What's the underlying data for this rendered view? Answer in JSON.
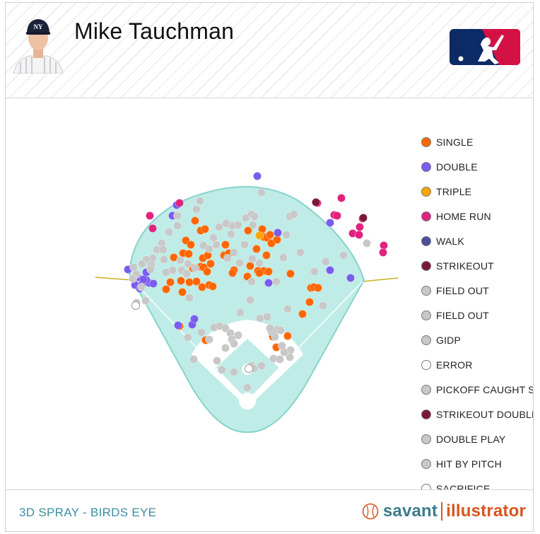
{
  "header": {
    "player_name": "Mike Tauchman",
    "logo_icon": "mlb-logo-icon",
    "headshot_icon": "player-headshot"
  },
  "footer": {
    "title": "3D SPRAY - BIRDS EYE",
    "brand_primary": "savant",
    "brand_secondary": "illustrator",
    "brand_icon": "baseball-icon"
  },
  "legend": [
    {
      "label": "SINGLE",
      "color": "#ff6600"
    },
    {
      "label": "DOUBLE",
      "color": "#7a5cf0"
    },
    {
      "label": "TRIPLE",
      "color": "#ffa500"
    },
    {
      "label": "HOME RUN",
      "color": "#e0237f"
    },
    {
      "label": "WALK",
      "color": "#4b4f9a"
    },
    {
      "label": "STRIKEOUT",
      "color": "#7a1838"
    },
    {
      "label": "FIELD OUT",
      "color": "#c8c8c8"
    },
    {
      "label": "FIELD OUT",
      "color": "#c8c8c8"
    },
    {
      "label": "GIDP",
      "color": "#c8c8c8"
    },
    {
      "label": "ERROR",
      "color": "#ffffff"
    },
    {
      "label": "PICKOFF CAUGHT STEALING",
      "color": "#c8c8c8"
    },
    {
      "label": "STRIKEOUT DOUBLE PLAY",
      "color": "#7a1838"
    },
    {
      "label": "DOUBLE PLAY",
      "color": "#c8c8c8"
    },
    {
      "label": "HIT BY PITCH",
      "color": "#c8c8c8"
    },
    {
      "label": "SACRIFICE",
      "color": "#ffffff"
    }
  ],
  "colors": {
    "field": "#bfece7",
    "field_stroke": "#86d3cb",
    "foul_line": "#c7b320",
    "accent": "#3b8ea2",
    "brand_orange": "#d9541e"
  },
  "chart_data": {
    "type": "scatter",
    "title": "",
    "view": "3D SPRAY - BIRDS EYE",
    "xlabel": "",
    "ylabel": "",
    "grid": false,
    "legend_position": "right",
    "series": [
      {
        "name": "SINGLE",
        "color": "#ff6600",
        "points": [
          [
            253,
            460
          ],
          [
            245,
            363
          ],
          [
            258,
            357
          ],
          [
            266,
            358
          ],
          [
            240,
            398
          ],
          [
            234,
            408
          ],
          [
            255,
            396
          ],
          [
            257,
            412
          ],
          [
            267,
            398
          ],
          [
            277,
            397
          ],
          [
            272,
            378
          ],
          [
            283,
            376
          ],
          [
            287,
            377
          ],
          [
            285,
            405
          ],
          [
            295,
            402
          ],
          [
            300,
            404
          ],
          [
            292,
            383
          ],
          [
            286,
            364
          ],
          [
            293,
            360
          ],
          [
            297,
            372
          ],
          [
            318,
            345
          ],
          [
            316,
            360
          ],
          [
            323,
            357
          ],
          [
            330,
            381
          ],
          [
            328,
            385
          ],
          [
            349,
            390
          ],
          [
            353,
            375
          ],
          [
            364,
            382
          ],
          [
            372,
            382
          ],
          [
            379,
            383
          ],
          [
            366,
            385
          ],
          [
            362,
            351
          ],
          [
            376,
            360
          ],
          [
            350,
            325
          ],
          [
            370,
            323
          ],
          [
            372,
            334
          ],
          [
            377,
            335
          ],
          [
            381,
            331
          ],
          [
            383,
            343
          ],
          [
            391,
            338
          ],
          [
            275,
            311
          ],
          [
            283,
            325
          ],
          [
            289,
            323
          ],
          [
            262,
            339
          ],
          [
            269,
            345
          ],
          [
            410,
            386
          ],
          [
            439,
            406
          ],
          [
            443,
            405
          ],
          [
            449,
            406
          ],
          [
            437,
            426
          ],
          [
            427,
            443
          ],
          [
            406,
            474
          ],
          [
            390,
            490
          ],
          [
            385,
            475
          ],
          [
            290,
            480
          ]
        ]
      },
      {
        "name": "DOUBLE",
        "color": "#7a5cf0",
        "points": [
          [
            363,
            248
          ],
          [
            466,
            314
          ],
          [
            243,
            304
          ],
          [
            249,
            289
          ],
          [
            392,
            328
          ],
          [
            379,
            399
          ],
          [
            466,
            381
          ],
          [
            495,
            392
          ],
          [
            206,
            384
          ],
          [
            194,
            391
          ],
          [
            190,
            402
          ],
          [
            197,
            407
          ],
          [
            200,
            401
          ],
          [
            210,
            399
          ],
          [
            216,
            400
          ],
          [
            206,
            395
          ],
          [
            202,
            394
          ],
          [
            180,
            380
          ],
          [
            251,
            459
          ],
          [
            271,
            458
          ],
          [
            274,
            450
          ]
        ]
      },
      {
        "name": "TRIPLE",
        "color": "#ffa500",
        "points": [
          [
            366,
            332
          ]
        ]
      },
      {
        "name": "HOME RUN",
        "color": "#e0237f",
        "points": [
          [
            211,
            304
          ],
          [
            215,
            322
          ],
          [
            253,
            286
          ],
          [
            448,
            286
          ],
          [
            482,
            279
          ],
          [
            472,
            303
          ],
          [
            476,
            304
          ],
          [
            512,
            308
          ],
          [
            508,
            320
          ],
          [
            498,
            329
          ],
          [
            507,
            331
          ],
          [
            542,
            346
          ],
          [
            541,
            356
          ]
        ]
      },
      {
        "name": "STRIKEOUT",
        "color": "#7a1838",
        "points": [
          [
            446,
            285
          ],
          [
            513,
            307
          ]
        ]
      },
      {
        "name": "FIELD OUT",
        "color": "#c8c8c8",
        "points": [
          [
            369,
            271
          ],
          [
            282,
            283
          ],
          [
            250,
            304
          ],
          [
            277,
            295
          ],
          [
            250,
            318
          ],
          [
            238,
            327
          ],
          [
            228,
            343
          ],
          [
            221,
            352
          ],
          [
            215,
            364
          ],
          [
            213,
            374
          ],
          [
            206,
            366
          ],
          [
            200,
            372
          ],
          [
            188,
            377
          ],
          [
            192,
            387
          ],
          [
            212,
            380
          ],
          [
            199,
            405
          ],
          [
            187,
            393
          ],
          [
            192,
            427
          ],
          [
            205,
            424
          ],
          [
            230,
            352
          ],
          [
            231,
            366
          ],
          [
            234,
            384
          ],
          [
            243,
            381
          ],
          [
            254,
            367
          ],
          [
            256,
            381
          ],
          [
            263,
            386
          ],
          [
            265,
            372
          ],
          [
            275,
            378
          ],
          [
            287,
            346
          ],
          [
            295,
            351
          ],
          [
            305,
            345
          ],
          [
            301,
            335
          ],
          [
            309,
            320
          ],
          [
            319,
            315
          ],
          [
            328,
            318
          ],
          [
            326,
            330
          ],
          [
            336,
            317
          ],
          [
            347,
            307
          ],
          [
            355,
            302
          ],
          [
            359,
            305
          ],
          [
            357,
            317
          ],
          [
            345,
            345
          ],
          [
            330,
            356
          ],
          [
            321,
            364
          ],
          [
            338,
            371
          ],
          [
            356,
            365
          ],
          [
            366,
            371
          ],
          [
            355,
            397
          ],
          [
            353,
            423
          ],
          [
            367,
            449
          ],
          [
            339,
            441
          ],
          [
            377,
            447
          ],
          [
            390,
            397
          ],
          [
            400,
            363
          ],
          [
            404,
            331
          ],
          [
            409,
            305
          ],
          [
            415,
            302
          ],
          [
            424,
            356
          ],
          [
            444,
            383
          ],
          [
            460,
            369
          ],
          [
            485,
            360
          ],
          [
            518,
            343
          ],
          [
            456,
            431
          ],
          [
            406,
            436
          ],
          [
            267,
            420
          ],
          [
            265,
            476
          ],
          [
            273,
            507
          ],
          [
            284,
            469
          ],
          [
            295,
            479
          ],
          [
            302,
            462
          ],
          [
            310,
            460
          ],
          [
            318,
            463
          ],
          [
            325,
            470
          ],
          [
            327,
            479
          ],
          [
            330,
            485
          ],
          [
            318,
            491
          ],
          [
            306,
            509
          ],
          [
            313,
            522
          ],
          [
            330,
            525
          ],
          [
            355,
            516
          ],
          [
            358,
            520
          ],
          [
            369,
            516
          ],
          [
            386,
            506
          ],
          [
            395,
            507
          ],
          [
            409,
            504
          ],
          [
            410,
            494
          ],
          [
            401,
            497
          ],
          [
            398,
            488
          ],
          [
            388,
            475
          ],
          [
            383,
            468
          ],
          [
            391,
            465
          ],
          [
            396,
            466
          ],
          [
            381,
            463
          ],
          [
            349,
            547
          ],
          [
            336,
            473
          ]
        ]
      },
      {
        "name": "ERROR",
        "color": "#ffffff",
        "points": [
          [
            191,
            431
          ],
          [
            351,
            520
          ]
        ]
      }
    ]
  }
}
